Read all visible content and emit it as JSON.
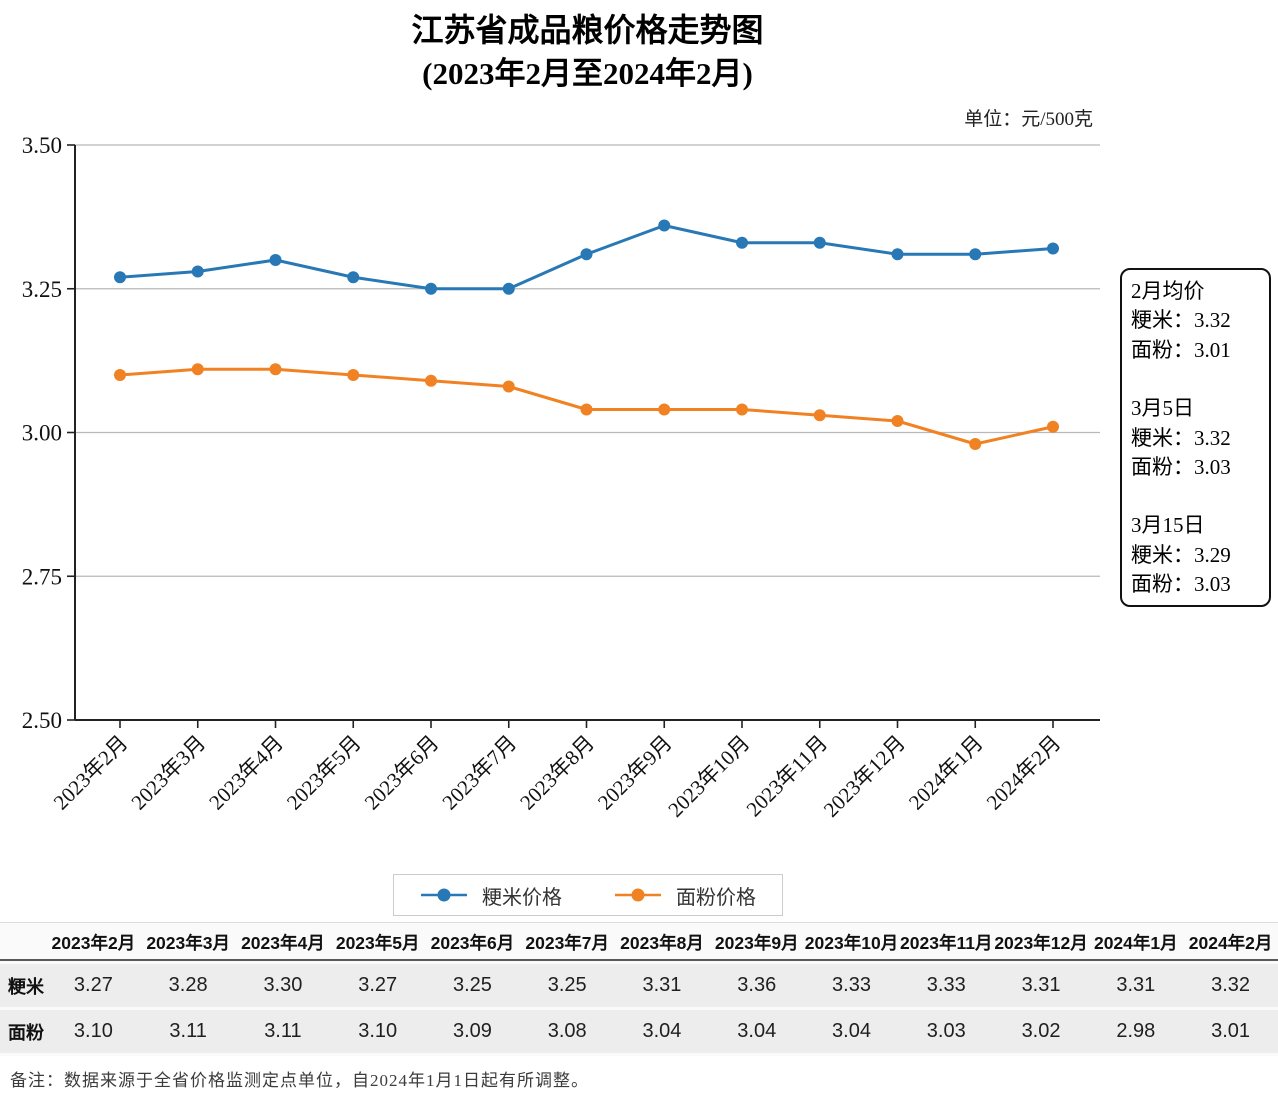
{
  "title": "江苏省成品粮价格走势图",
  "subtitle": "(2023年2月至2024年2月)",
  "unit_label": "单位：元/500克",
  "chart_data": {
    "type": "line",
    "categories": [
      "2023年2月",
      "2023年3月",
      "2023年4月",
      "2023年5月",
      "2023年6月",
      "2023年7月",
      "2023年8月",
      "2023年9月",
      "2023年10月",
      "2023年11月",
      "2023年12月",
      "2024年1月",
      "2024年2月"
    ],
    "series": [
      {
        "name": "粳米价格",
        "color": "#2878B5",
        "values": [
          3.27,
          3.28,
          3.3,
          3.27,
          3.25,
          3.25,
          3.31,
          3.36,
          3.33,
          3.33,
          3.31,
          3.31,
          3.32
        ]
      },
      {
        "name": "面粉价格",
        "color": "#F08223",
        "values": [
          3.1,
          3.11,
          3.11,
          3.1,
          3.09,
          3.08,
          3.04,
          3.04,
          3.04,
          3.03,
          3.02,
          2.98,
          3.01
        ]
      }
    ],
    "ylim": [
      2.5,
      3.5
    ],
    "yticks": [
      2.5,
      2.75,
      3.0,
      3.25,
      3.5
    ],
    "ytick_labels": [
      "2.50",
      "2.75",
      "3.00",
      "3.25",
      "3.50"
    ],
    "grid": "horizontal",
    "legend_position": "bottom",
    "gridline_color": "#b8b8b8",
    "axis_color": "#222222"
  },
  "annotation_box": {
    "groups": [
      {
        "title": "2月均价",
        "line1": "粳米：3.32",
        "line2": "面粉：3.01"
      },
      {
        "title": "3月5日",
        "line1": "粳米：3.32",
        "line2": "面粉：3.03"
      },
      {
        "title": "3月15日",
        "line1": "粳米：3.29",
        "line2": "面粉：3.03"
      }
    ]
  },
  "table": {
    "columns": [
      "2023年2月",
      "2023年3月",
      "2023年4月",
      "2023年5月",
      "2023年6月",
      "2023年7月",
      "2023年8月",
      "2023年9月",
      "2023年10月",
      "2023年11月",
      "2023年12月",
      "2024年1月",
      "2024年2月"
    ],
    "rows": [
      {
        "label": "粳米",
        "values": [
          "3.27",
          "3.28",
          "3.30",
          "3.27",
          "3.25",
          "3.25",
          "3.31",
          "3.36",
          "3.33",
          "3.33",
          "3.31",
          "3.31",
          "3.32"
        ]
      },
      {
        "label": "面粉",
        "values": [
          "3.10",
          "3.11",
          "3.11",
          "3.10",
          "3.09",
          "3.08",
          "3.04",
          "3.04",
          "3.04",
          "3.03",
          "3.02",
          "2.98",
          "3.01"
        ]
      }
    ]
  },
  "footnote": "备注：数据来源于全省价格监测定点单位，自2024年1月1日起有所调整。"
}
